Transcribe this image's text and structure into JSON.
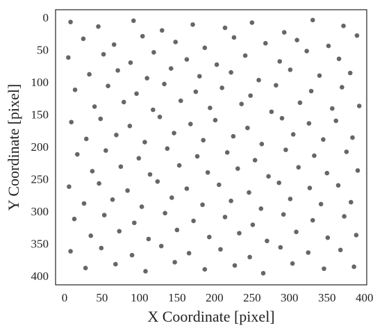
{
  "chart_data": {
    "type": "scatter",
    "xlabel": "X Coordinate [pixel]",
    "ylabel": "Y Coordinate [pixel]",
    "color": "#333333",
    "xlim": [
      -12,
      403
    ],
    "ylim": [
      -14,
      412
    ],
    "y_inverted": true,
    "xticks": [
      0,
      50,
      100,
      150,
      200,
      250,
      300,
      350,
      400
    ],
    "yticks": [
      0,
      50,
      100,
      150,
      200,
      250,
      300,
      350,
      400
    ],
    "x": [
      8,
      45,
      92,
      130,
      171,
      214,
      250,
      293,
      331,
      372,
      25,
      66,
      104,
      148,
      187,
      226,
      268,
      310,
      352,
      390,
      5,
      52,
      88,
      119,
      163,
      203,
      241,
      287,
      323,
      366,
      33,
      71,
      110,
      142,
      180,
      222,
      259,
      301,
      340,
      381,
      14,
      58,
      96,
      133,
      175,
      210,
      248,
      282,
      329,
      370,
      40,
      79,
      118,
      155,
      194,
      236,
      276,
      314,
      357,
      393,
      9,
      48,
      87,
      127,
      168,
      201,
      244,
      290,
      326,
      362,
      29,
      69,
      107,
      146,
      185,
      225,
      263,
      305,
      345,
      384,
      17,
      55,
      99,
      137,
      177,
      217,
      254,
      295,
      333,
      376,
      37,
      75,
      114,
      153,
      191,
      231,
      272,
      312,
      350,
      391,
      6,
      46,
      84,
      124,
      163,
      206,
      246,
      286,
      327,
      365,
      26,
      64,
      103,
      143,
      184,
      222,
      262,
      301,
      342,
      382,
      13,
      53,
      93,
      134,
      172,
      214,
      251,
      292,
      331,
      373,
      35,
      73,
      112,
      150,
      193,
      233,
      270,
      309,
      351,
      389,
      8,
      49,
      90,
      129,
      166,
      208,
      247,
      288,
      325,
      368,
      28,
      68,
      108,
      147,
      187,
      227,
      265,
      304,
      346,
      386
    ],
    "values": [
      5,
      12,
      3,
      18,
      9,
      14,
      6,
      21,
      2,
      11,
      31,
      40,
      27,
      36,
      45,
      29,
      38,
      33,
      42,
      26,
      60,
      55,
      68,
      52,
      63,
      71,
      57,
      66,
      50,
      62,
      86,
      80,
      92,
      77,
      89,
      83,
      95,
      79,
      88,
      84,
      110,
      104,
      116,
      101,
      113,
      107,
      119,
      103,
      112,
      106,
      136,
      129,
      141,
      127,
      138,
      132,
      144,
      130,
      139,
      135,
      160,
      155,
      166,
      152,
      163,
      157,
      169,
      154,
      162,
      158,
      186,
      180,
      191,
      177,
      188,
      182,
      194,
      179,
      187,
      184,
      210,
      204,
      216,
      201,
      213,
      207,
      219,
      203,
      212,
      206,
      236,
      229,
      241,
      227,
      238,
      232,
      244,
      230,
      239,
      235,
      260,
      255,
      266,
      252,
      263,
      257,
      269,
      254,
      262,
      258,
      286,
      280,
      291,
      277,
      288,
      282,
      294,
      279,
      287,
      284,
      310,
      304,
      316,
      301,
      313,
      307,
      319,
      303,
      312,
      306,
      336,
      329,
      341,
      327,
      338,
      332,
      344,
      330,
      339,
      335,
      360,
      355,
      366,
      352,
      363,
      357,
      369,
      354,
      362,
      358,
      386,
      380,
      391,
      377,
      388,
      382,
      394,
      379,
      387,
      384
    ]
  }
}
